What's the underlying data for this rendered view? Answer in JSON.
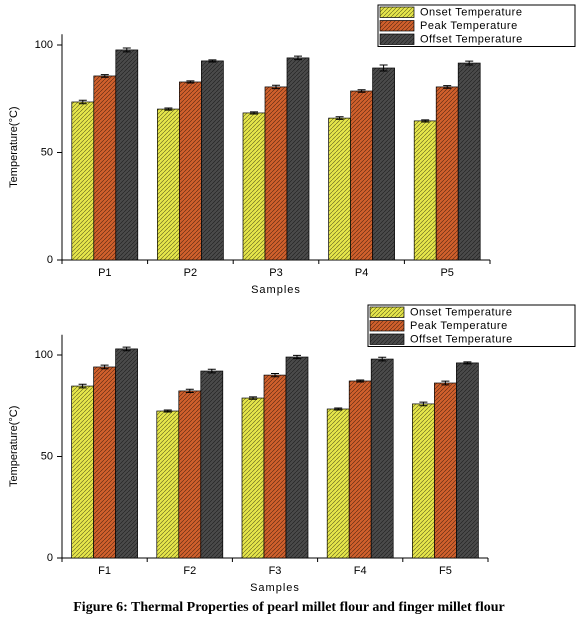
{
  "chart_data": [
    {
      "type": "bar",
      "xlabel": "Samples",
      "ylabel": "Temperature(°C)",
      "categories": [
        "P1",
        "P2",
        "P3",
        "P4",
        "P5"
      ],
      "series": [
        {
          "name": "Onset Temperature",
          "color": "#e6e64a",
          "values": [
            73.5,
            70.2,
            68.4,
            66,
            64.7
          ],
          "errors": [
            0.8,
            0.5,
            0.5,
            0.6,
            0.5
          ]
        },
        {
          "name": "Peak Temperature",
          "color": "#d0602c",
          "values": [
            85.6,
            82.8,
            80.5,
            78.6,
            80.5
          ],
          "errors": [
            0.6,
            0.5,
            0.8,
            0.6,
            0.6
          ]
        },
        {
          "name": "Offset Temperature",
          "color": "#4a4a4a",
          "values": [
            97.7,
            92.6,
            94,
            89.3,
            91.6
          ],
          "errors": [
            0.9,
            0.5,
            0.8,
            1.4,
            0.9
          ]
        }
      ],
      "ylim": [
        0,
        105
      ],
      "yticks": [
        0,
        50,
        100
      ],
      "legend": "top-right"
    },
    {
      "type": "bar",
      "xlabel": "Samples",
      "ylabel": "Temperature(°C)",
      "categories": [
        "F1",
        "F2",
        "F3",
        "F4",
        "F5"
      ],
      "series": [
        {
          "name": "Onset Temperature",
          "color": "#e6e64a",
          "values": [
            84.7,
            72.4,
            78.8,
            73.4,
            75.9
          ],
          "errors": [
            0.9,
            0.5,
            0.6,
            0.5,
            0.9
          ]
        },
        {
          "name": "Peak Temperature",
          "color": "#d0602c",
          "values": [
            94.1,
            82.3,
            90.1,
            87.2,
            86.2
          ],
          "errors": [
            0.9,
            0.8,
            0.8,
            0.5,
            0.9
          ]
        },
        {
          "name": "Offset Temperature",
          "color": "#4a4a4a",
          "values": [
            103,
            92.1,
            99,
            98,
            96.1
          ],
          "errors": [
            0.9,
            0.9,
            0.8,
            0.9,
            0.5
          ]
        }
      ],
      "ylim": [
        0,
        110
      ],
      "yticks": [
        0,
        50,
        100
      ],
      "legend": "top-right"
    }
  ],
  "caption": "Figure 6: Thermal Properties of pearl millet flour and finger millet flour"
}
